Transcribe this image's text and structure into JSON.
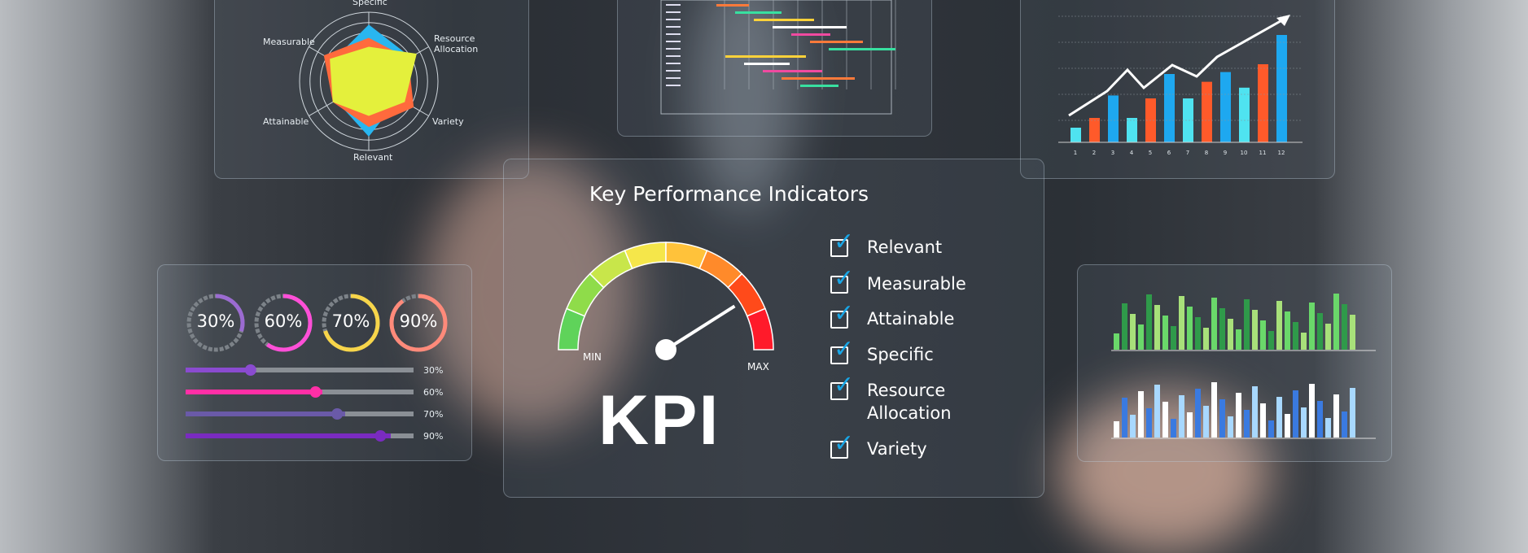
{
  "radar": {
    "axes": [
      "Specific",
      "Resource Allocation",
      "Variety",
      "Relevant",
      "Attainable",
      "Measurable"
    ],
    "series": [
      {
        "color": "#29b6f0",
        "values": [
          0.82,
          0.7,
          0.5,
          0.8,
          0.55,
          0.6
        ]
      },
      {
        "color": "#ff6a3d",
        "values": [
          0.63,
          0.66,
          0.75,
          0.66,
          0.6,
          0.75
        ]
      },
      {
        "color": "#e4f03c",
        "values": [
          0.5,
          0.8,
          0.6,
          0.5,
          0.6,
          0.65
        ]
      }
    ]
  },
  "top_bar_chart": {
    "categories": [
      "1",
      "2",
      "3",
      "4",
      "5",
      "6",
      "7",
      "8",
      "9",
      "10",
      "11",
      "12"
    ],
    "values": [
      15,
      25,
      48,
      25,
      45,
      70,
      45,
      62,
      72,
      56,
      80,
      110
    ],
    "colors": [
      "#4fe3f0",
      "#ff5a2a",
      "#1ea8f0",
      "#4fe3f0",
      "#ff5a2a",
      "#1ea8f0",
      "#4fe3f0",
      "#ff5a2a",
      "#1ea8f0",
      "#4fe3f0",
      "#ff5a2a",
      "#1ea8f0"
    ]
  },
  "kpi": {
    "title": "Key Performance Indicators",
    "min": "MIN",
    "max": "MAX",
    "big": "KPI",
    "gauge_value": 0.82,
    "checklist": [
      "Relevant",
      "Measurable",
      "Attainable",
      "Specific",
      "Resource\nAllocation",
      "Variety"
    ]
  },
  "progress": {
    "rings": [
      {
        "label": "30%",
        "value": 30,
        "color": "#9b6bd1"
      },
      {
        "label": "60%",
        "value": 60,
        "color": "#ff4fd8"
      },
      {
        "label": "70%",
        "value": 70,
        "color": "#f7d54a"
      },
      {
        "label": "90%",
        "value": 90,
        "color": "#ff8a7a"
      }
    ],
    "sliders": [
      {
        "label": "30%",
        "value": 30,
        "color": "#8a4bd0"
      },
      {
        "label": "60%",
        "value": 60,
        "color": "#ff2fa6"
      },
      {
        "label": "70%",
        "value": 70,
        "color": "#6a5aa8"
      },
      {
        "label": "90%",
        "value": 90,
        "color": "#7a2bc0"
      }
    ]
  }
}
